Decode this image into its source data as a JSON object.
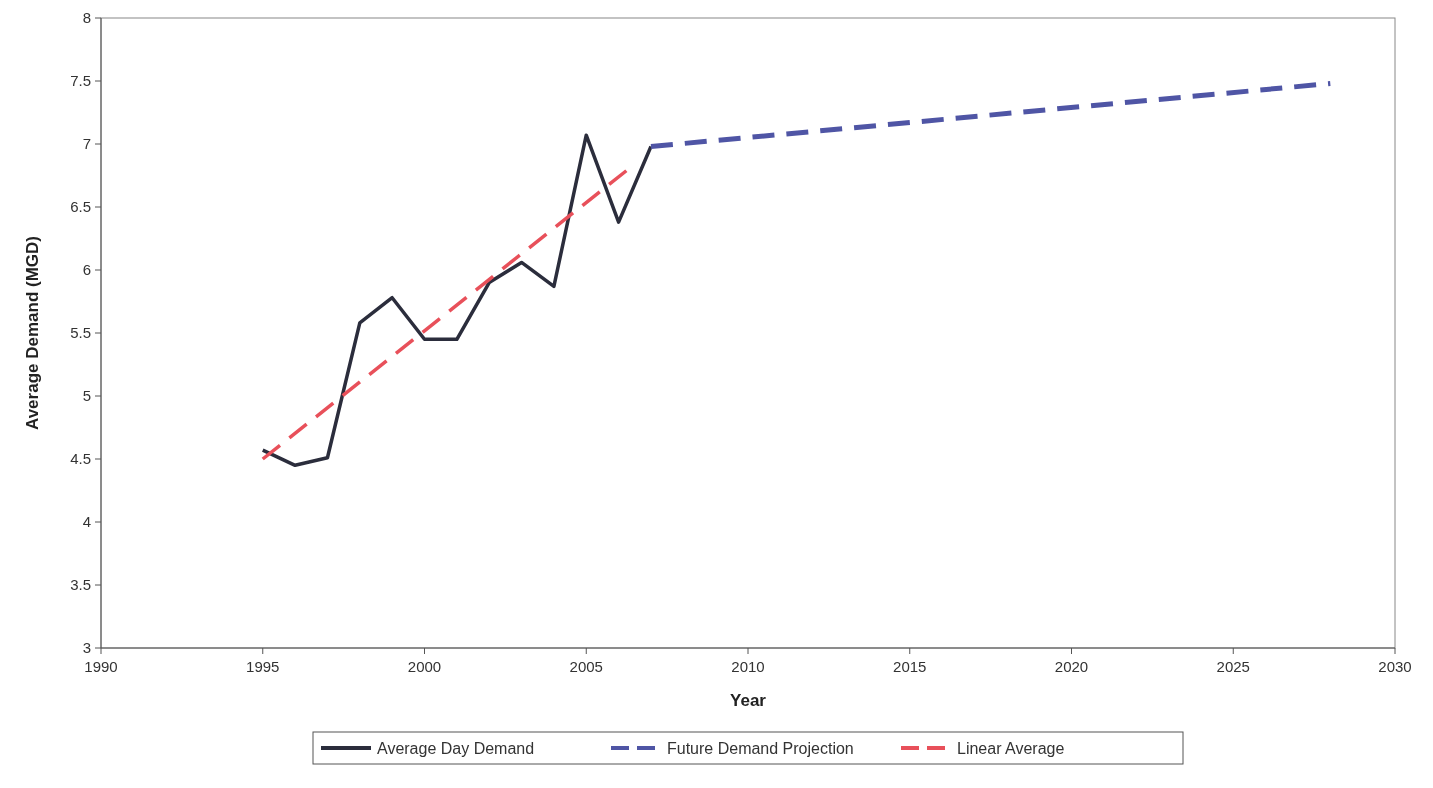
{
  "chart_data": {
    "type": "line",
    "xlabel": "Year",
    "ylabel": "Average Demand (MGD)",
    "xlim": [
      1990,
      2030
    ],
    "xticks": [
      1990,
      1995,
      2000,
      2005,
      2010,
      2015,
      2020,
      2025,
      2030
    ],
    "ylim": [
      3,
      8
    ],
    "yticks": [
      3,
      3.5,
      4,
      4.5,
      5,
      5.5,
      6,
      6.5,
      7,
      7.5,
      8
    ],
    "grid": false,
    "legend": "bottom",
    "marker": "none",
    "series": [
      {
        "name": "Average Day Demand",
        "color": "#2b2d3c",
        "line_style": "solid",
        "x": [
          1995,
          1996,
          1997,
          1998,
          1999,
          2000,
          2001,
          2002,
          2003,
          2004,
          2005,
          2006,
          2007
        ],
        "values": [
          4.57,
          4.45,
          4.51,
          5.58,
          5.78,
          5.45,
          5.45,
          5.9,
          6.06,
          5.87,
          7.07,
          6.38,
          6.98
        ]
      },
      {
        "name": "Future Demand Projection",
        "color": "#4f55a5",
        "line_style": "dashed",
        "x": [
          2007,
          2028
        ],
        "values": [
          6.98,
          7.48
        ]
      },
      {
        "name": "Linear Average",
        "color": "#e8505a",
        "line_style": "dashed",
        "x": [
          1995,
          2006.3
        ],
        "values": [
          4.5,
          6.8
        ]
      }
    ]
  }
}
